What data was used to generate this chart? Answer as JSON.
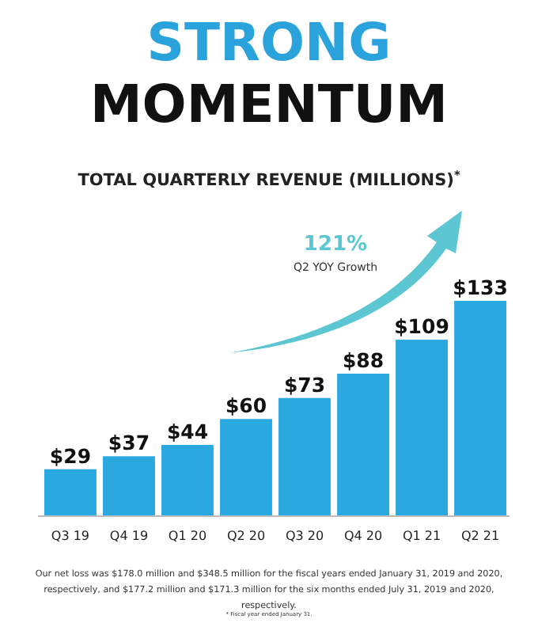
{
  "chart_data": {
    "type": "bar",
    "title": "STRONG\nMOMENTUM",
    "subtitle": "TOTAL QUARTERLY REVENUE (MILLIONS)$^{*}$",
    "categories": [
      "Q3 19",
      "Q4 19",
      "Q1 20",
      "Q2 20",
      "Q3 20",
      "Q4 20",
      "Q1 21",
      "Q2 21"
    ],
    "values": [
      29,
      37,
      44,
      60,
      73,
      88,
      109,
      133
    ],
    "value_labels": [
      "$29",
      "$37",
      "$44",
      "$60",
      "$73",
      "$88",
      "$109",
      "$133"
    ],
    "color": "#2aa8e0",
    "annotations": [
      "121%",
      "Q2 YOY Growth",
      "Our net loss was $178.0 million and $348.5 million for the fiscal years ended January 31, 2019 and 2020, respectively, and $177.2 million and $171.3 million for the six months ended July 31, 2019 and 2020, respectively.",
      "* Fiscal year ended January 31."
    ]
  }
}
